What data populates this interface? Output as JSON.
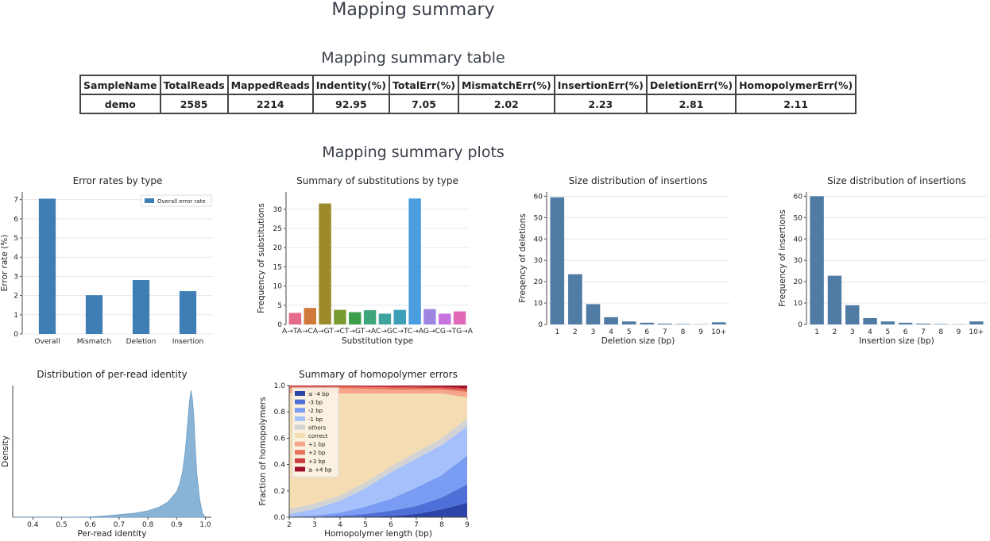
{
  "page": {
    "title": "Mapping summary",
    "table_heading": "Mapping summary table",
    "plots_heading": "Mapping summary plots"
  },
  "summary_table": {
    "headers": [
      "SampleName",
      "TotalReads",
      "MappedReads",
      "Indentity(%)",
      "TotalErr(%)",
      "MismatchErr(%)",
      "InsertionErr(%)",
      "DeletionErr(%)",
      "HomopolymerErr(%)"
    ],
    "rows": [
      [
        "demo",
        "2585",
        "2214",
        "92.95",
        "7.05",
        "2.02",
        "2.23",
        "2.81",
        "2.11"
      ]
    ]
  },
  "chart_data": [
    {
      "type": "bar",
      "title": "Error rates by type",
      "xlabel": "",
      "ylabel": "Error rate (%)",
      "categories": [
        "Overall",
        "Mismatch",
        "Deletion",
        "Insertion"
      ],
      "values": [
        7.05,
        2.02,
        2.81,
        2.23
      ],
      "ylim": [
        0,
        7.4
      ],
      "yticks": [
        0,
        1,
        2,
        3,
        4,
        5,
        6,
        7
      ],
      "legend": [
        "Overall error rate"
      ],
      "legend_position": "top-right",
      "color": "#3f7db5"
    },
    {
      "type": "bar",
      "title": "Summary of substitutions by type",
      "xlabel": "Substitution type",
      "ylabel": "Frequency of substitutions",
      "categories": [
        "A→T",
        "A→C",
        "A→G",
        "T→C",
        "T→G",
        "T→A",
        "C→G",
        "C→T",
        "C→A",
        "G→C",
        "G→T",
        "G→A"
      ],
      "tick_text": "A→TA→CA→GT→CT→GT→AC→GC→TC→AG→CG→TG→A",
      "values": [
        3.0,
        4.3,
        31.5,
        3.8,
        3.2,
        3.7,
        2.8,
        3.8,
        32.8,
        4.0,
        2.8,
        3.4
      ],
      "colors": [
        "#e66a8a",
        "#cf7a3a",
        "#9c8a2b",
        "#7a9a32",
        "#3d9e4a",
        "#3ea67a",
        "#3fa4a0",
        "#3ea0b8",
        "#4a9ee0",
        "#9d86e0",
        "#c673e0",
        "#e06ab8"
      ],
      "ylim": [
        0,
        34.5
      ],
      "yticks": [
        0,
        5,
        10,
        15,
        20,
        25,
        30
      ]
    },
    {
      "type": "bar",
      "title": "Size distribution of insertions",
      "xlabel": "Deletion size (bp)",
      "ylabel": "Freqency of deletions",
      "categories": [
        "1",
        "2",
        "3",
        "4",
        "5",
        "6",
        "7",
        "8",
        "9",
        "10+"
      ],
      "values": [
        59.5,
        23.5,
        9.5,
        3.4,
        1.4,
        0.8,
        0.4,
        0.2,
        0.1,
        1.0
      ],
      "ylim": [
        0,
        62
      ],
      "yticks": [
        0,
        10,
        20,
        30,
        40,
        50,
        60
      ],
      "color": "#4f7ba4"
    },
    {
      "type": "bar",
      "title": "Size distribution of insertions",
      "xlabel": "Insertion size (bp)",
      "ylabel": "Frequency of insertions",
      "categories": [
        "1",
        "2",
        "3",
        "4",
        "5",
        "6",
        "7",
        "8",
        "9",
        "10+"
      ],
      "values": [
        60.0,
        22.8,
        9.0,
        3.0,
        1.4,
        0.8,
        0.4,
        0.2,
        0.1,
        1.4
      ],
      "ylim": [
        0,
        62
      ],
      "yticks": [
        0,
        10,
        20,
        30,
        40,
        50,
        60
      ],
      "color": "#4f7ba4"
    },
    {
      "type": "area",
      "title": "Distribution of per-read identity",
      "xlabel": "Per-read identity",
      "ylabel": "Density",
      "xlim": [
        0.33,
        1.0
      ],
      "xticks": [
        0.4,
        0.5,
        0.6,
        0.7,
        0.8,
        0.9,
        1.0
      ],
      "x": [
        0.33,
        0.5,
        0.6,
        0.65,
        0.7,
        0.75,
        0.8,
        0.84,
        0.87,
        0.9,
        0.91,
        0.92,
        0.93,
        0.94,
        0.945,
        0.95,
        0.955,
        0.96,
        0.965,
        0.97,
        0.98,
        0.99,
        1.0
      ],
      "y": [
        0,
        0,
        0.002,
        0.01,
        0.02,
        0.03,
        0.05,
        0.08,
        0.12,
        0.2,
        0.26,
        0.35,
        0.52,
        0.78,
        0.92,
        1.0,
        0.93,
        0.78,
        0.55,
        0.35,
        0.14,
        0.03,
        0
      ],
      "color": "#8ab4d6"
    },
    {
      "type": "area",
      "title": "Summary of homopolymer errors",
      "xlabel": "Homopolymer length (bp)",
      "ylabel": "Fraction of homopolymers",
      "x": [
        2,
        3,
        4,
        5,
        6,
        7,
        8,
        9
      ],
      "ylim": [
        0,
        1.0
      ],
      "yticks": [
        0.0,
        0.2,
        0.4,
        0.6,
        0.8,
        1.0
      ],
      "stacked": true,
      "series": [
        {
          "name": "≤ -4 bp",
          "color": "#2d44a8",
          "values": [
            0.0,
            0.0,
            0.002,
            0.005,
            0.01,
            0.025,
            0.06,
            0.11
          ]
        },
        {
          "name": "-3 bp",
          "color": "#4f6fd8",
          "values": [
            0.001,
            0.003,
            0.008,
            0.02,
            0.04,
            0.06,
            0.09,
            0.14
          ]
        },
        {
          "name": "-2 bp",
          "color": "#7a9cf2",
          "values": [
            0.003,
            0.01,
            0.025,
            0.055,
            0.09,
            0.14,
            0.17,
            0.22
          ]
        },
        {
          "name": "-1 bp",
          "color": "#a6c0fb",
          "values": [
            0.02,
            0.05,
            0.09,
            0.14,
            0.2,
            0.22,
            0.23,
            0.22
          ]
        },
        {
          "name": "others",
          "color": "#d3d3d3",
          "values": [
            0.04,
            0.04,
            0.04,
            0.045,
            0.045,
            0.05,
            0.05,
            0.06
          ]
        },
        {
          "name": "correct",
          "color": "#f4dcb3",
          "values": [
            0.876,
            0.837,
            0.775,
            0.675,
            0.555,
            0.445,
            0.34,
            0.16
          ]
        },
        {
          "name": "+1 bp",
          "color": "#f5a58a",
          "values": [
            0.04,
            0.04,
            0.04,
            0.035,
            0.03,
            0.03,
            0.03,
            0.04
          ]
        },
        {
          "name": "+2 bp",
          "color": "#e8735a",
          "values": [
            0.012,
            0.012,
            0.012,
            0.014,
            0.015,
            0.013,
            0.01,
            0.015
          ]
        },
        {
          "name": "+3 bp",
          "color": "#cc3e3e",
          "values": [
            0.005,
            0.005,
            0.005,
            0.007,
            0.01,
            0.01,
            0.01,
            0.015
          ]
        },
        {
          "name": "≥ +4 bp",
          "color": "#a00f2a",
          "values": [
            0.003,
            0.003,
            0.003,
            0.004,
            0.005,
            0.007,
            0.01,
            0.02
          ]
        }
      ]
    }
  ]
}
